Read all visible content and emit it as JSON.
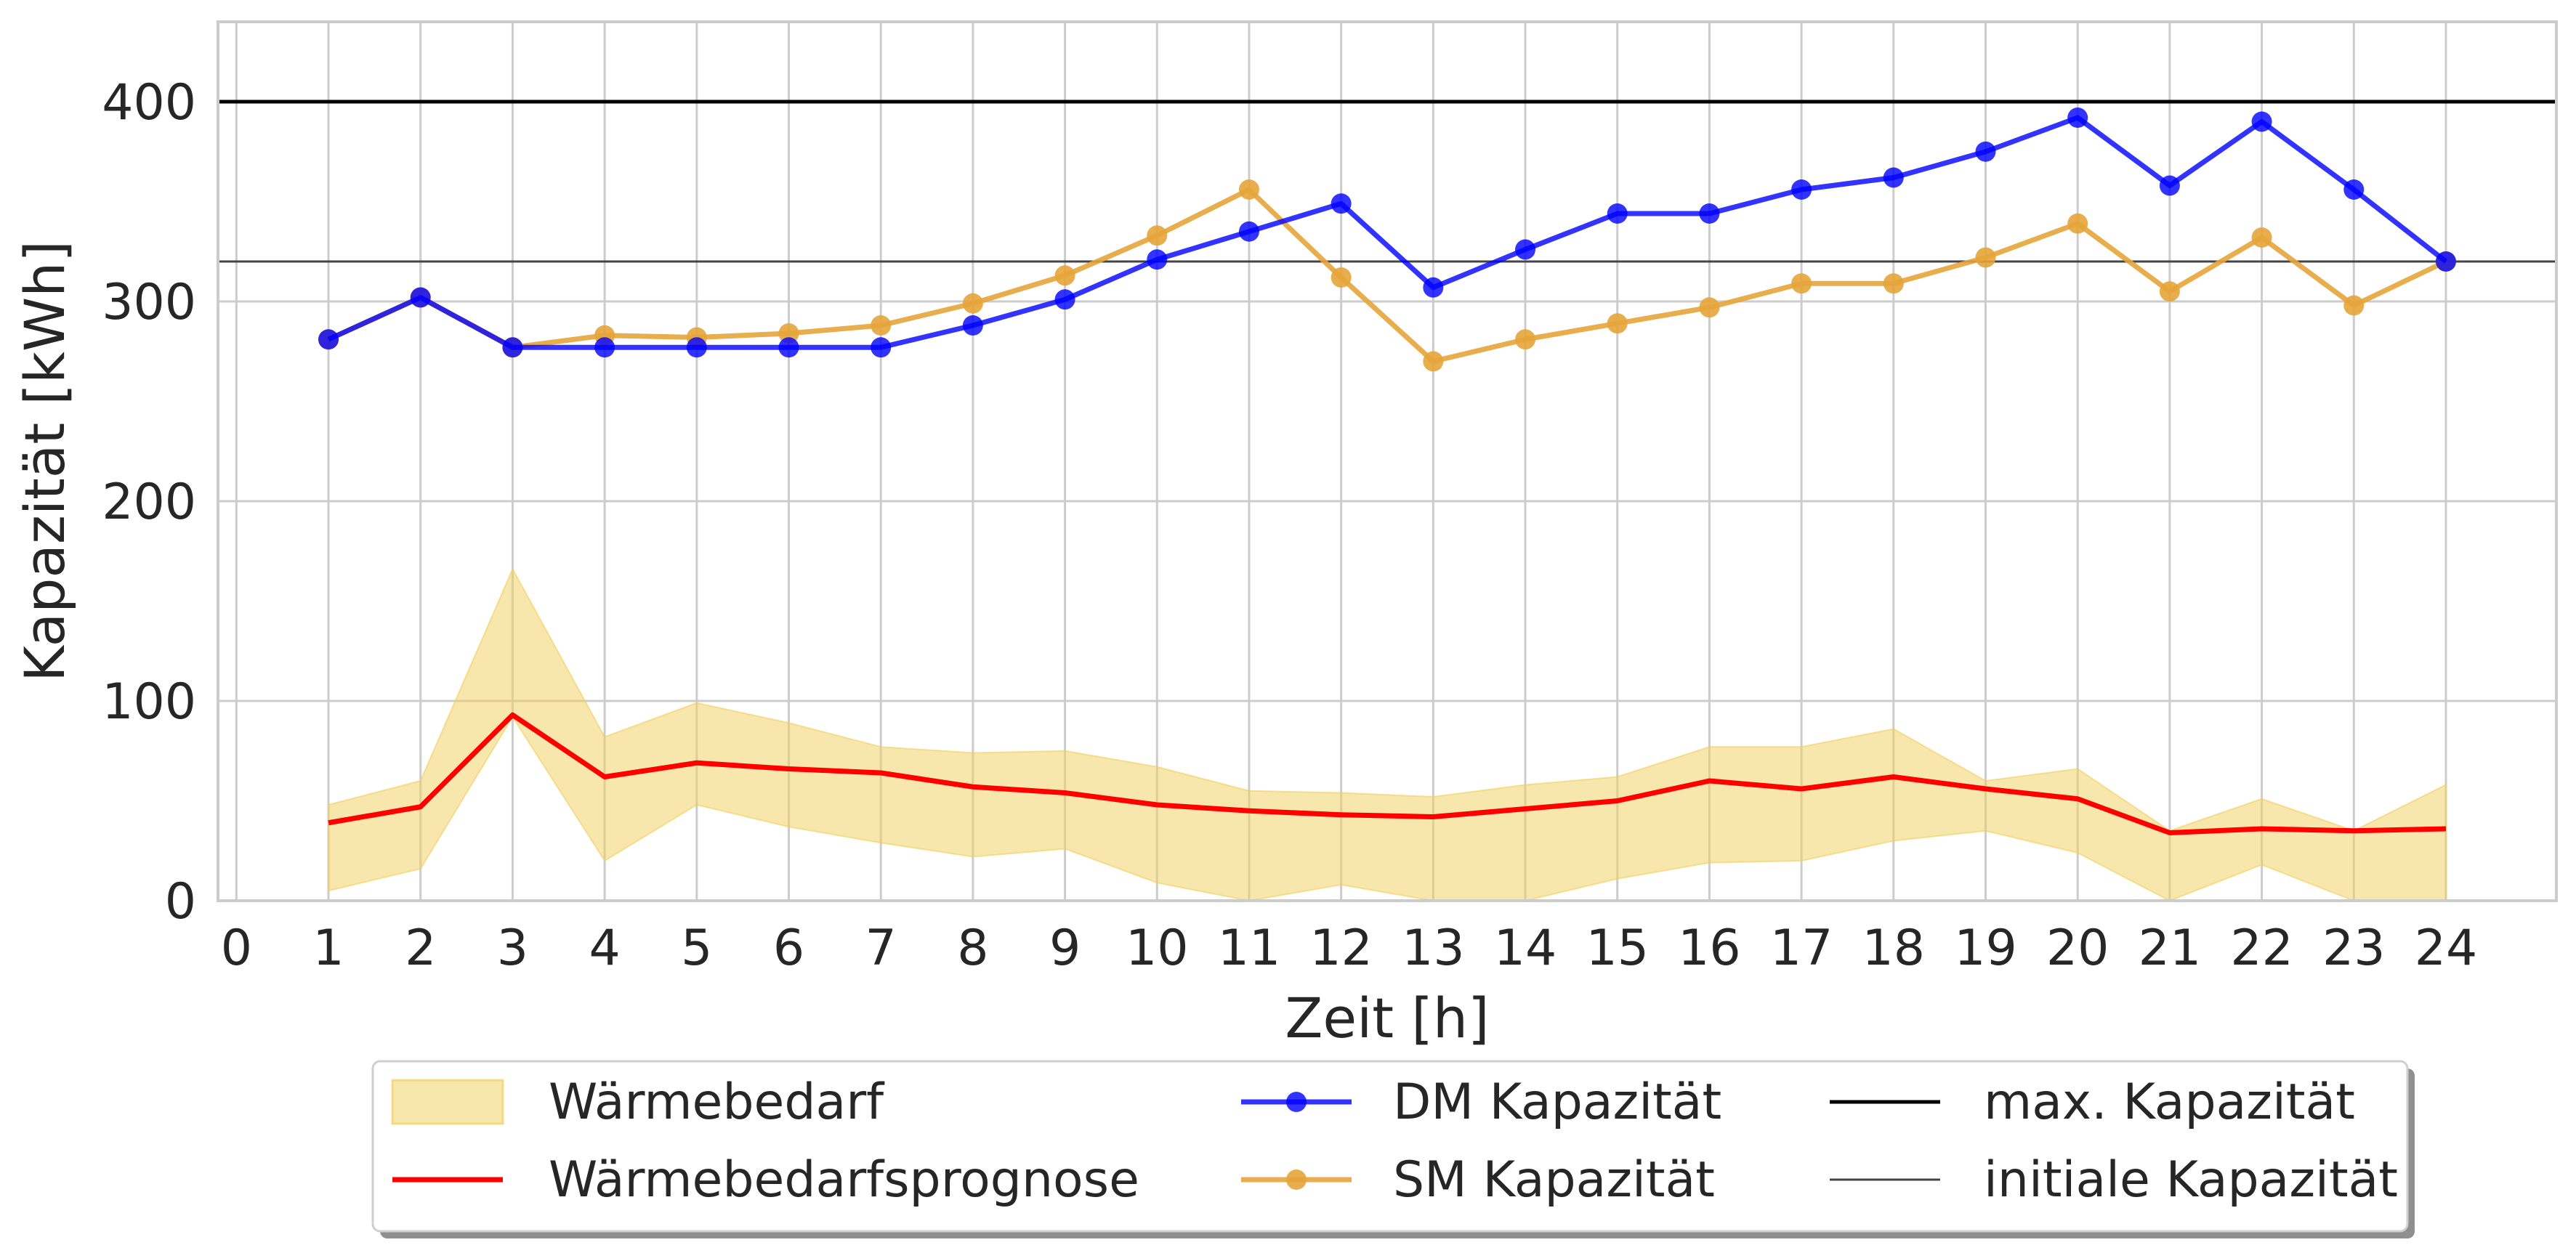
{
  "chart_data": {
    "type": "line",
    "xlabel": "Zeit [h]",
    "ylabel": "Kapazität [kWh]",
    "xlim": [
      -0.2,
      25.2
    ],
    "ylim": [
      0,
      440
    ],
    "xticks": [
      0,
      1,
      2,
      3,
      4,
      5,
      6,
      7,
      8,
      9,
      10,
      11,
      12,
      13,
      14,
      15,
      16,
      17,
      18,
      19,
      20,
      21,
      22,
      23,
      24
    ],
    "yticks": [
      0,
      100,
      200,
      300,
      400
    ],
    "grid": true,
    "legend_position": "bottom-center",
    "x": [
      1,
      2,
      3,
      4,
      5,
      6,
      7,
      8,
      9,
      10,
      11,
      12,
      13,
      14,
      15,
      16,
      17,
      18,
      19,
      20,
      21,
      22,
      23,
      24
    ],
    "band": {
      "name": "Wärmebedarf",
      "color": "#f2cf5b",
      "lower": [
        5,
        16,
        92,
        20,
        48,
        37,
        29,
        22,
        26,
        9,
        0,
        8,
        -20,
        -5,
        11,
        19,
        20,
        30,
        35,
        24,
        -5,
        18,
        -5,
        -10
      ],
      "upper": [
        48,
        60,
        166,
        82,
        99,
        89,
        77,
        74,
        75,
        67,
        55,
        54,
        52,
        58,
        62,
        77,
        77,
        86,
        60,
        66,
        35,
        51,
        35,
        58
      ]
    },
    "series": [
      {
        "name": "Wärmebedarfsprognose",
        "color": "#ff0000",
        "marker": false,
        "values": [
          39,
          47,
          93,
          62,
          69,
          66,
          64,
          57,
          54,
          48,
          45,
          43,
          42,
          46,
          50,
          60,
          56,
          62,
          56,
          51,
          34,
          36,
          35,
          36
        ]
      },
      {
        "name": "DM Kapazität",
        "color": "#0000ff",
        "marker": true,
        "values": [
          281,
          302,
          277,
          277,
          277,
          277,
          277,
          288,
          301,
          321,
          335,
          349,
          307,
          326,
          344,
          344,
          356,
          362,
          375,
          392,
          358,
          390,
          356,
          320
        ]
      },
      {
        "name": "SM Kapazität",
        "color": "#e6a53a",
        "marker": true,
        "values": [
          281,
          302,
          277,
          283,
          282,
          284,
          288,
          299,
          313,
          333,
          356,
          312,
          270,
          281,
          289,
          297,
          309,
          309,
          322,
          339,
          305,
          332,
          298,
          320
        ]
      }
    ],
    "hlines": [
      {
        "name": "max. Kapazität",
        "value": 400,
        "color": "#000000"
      },
      {
        "name": "initiale Kapazität",
        "value": 320,
        "color": "#444444"
      }
    ]
  }
}
